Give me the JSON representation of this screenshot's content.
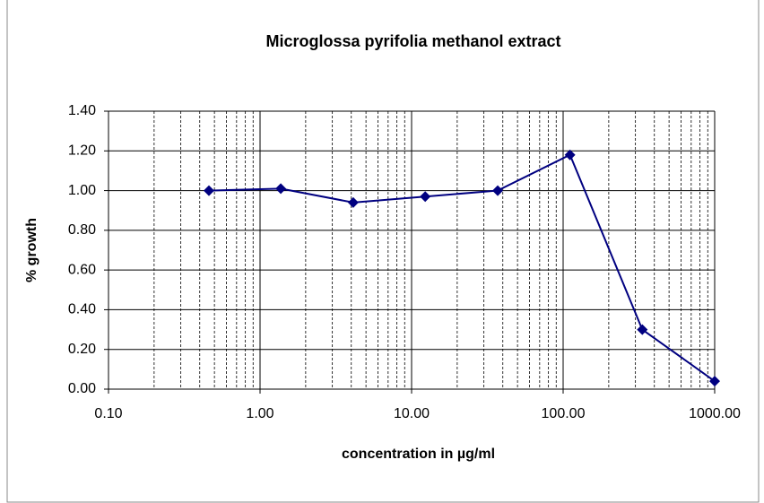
{
  "chart_data": {
    "type": "line",
    "title": "Microglossa pyrifolia methanol extract",
    "x_label": "concentration in µg/ml",
    "y_label": "% growth",
    "x": [
      0.46,
      1.37,
      4.12,
      12.3,
      37,
      111,
      333,
      1000
    ],
    "series": [
      {
        "name": "% growth",
        "color": "#000080",
        "values": [
          1.0,
          1.01,
          0.94,
          0.97,
          1.0,
          1.18,
          0.3,
          0.04
        ]
      }
    ],
    "xscale": "log",
    "xlim": [
      0.1,
      1000
    ],
    "xticks": [
      {
        "value": 0.1,
        "label": "0.10"
      },
      {
        "value": 1,
        "label": "1.00"
      },
      {
        "value": 10,
        "label": "10.00"
      },
      {
        "value": 100,
        "label": "100.00"
      },
      {
        "value": 1000,
        "label": "1000.00"
      }
    ],
    "ylim": [
      0,
      1.4
    ],
    "yticks": [
      {
        "value": 0,
        "label": "0.00"
      },
      {
        "value": 0.2,
        "label": "0.20"
      },
      {
        "value": 0.4,
        "label": "0.40"
      },
      {
        "value": 0.6,
        "label": "0.60"
      },
      {
        "value": 0.8,
        "label": "0.80"
      },
      {
        "value": 1.0,
        "label": "1.00"
      },
      {
        "value": 1.2,
        "label": "1.20"
      },
      {
        "value": 1.4,
        "label": "1.40"
      }
    ],
    "grid": true,
    "minor_grid": true,
    "legend": false
  }
}
